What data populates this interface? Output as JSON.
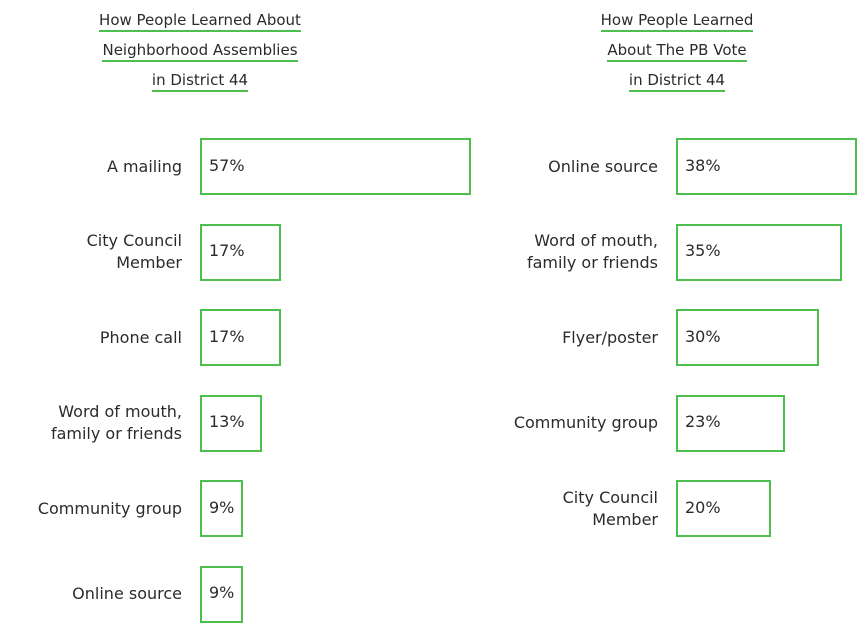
{
  "chart_data": [
    {
      "type": "bar",
      "title": [
        "How People Learned About",
        "Neighborhood Assemblies",
        "in District 44"
      ],
      "categories": [
        [
          "A mailing"
        ],
        [
          "City Council",
          "Member"
        ],
        [
          "Phone call"
        ],
        [
          "Word of mouth,",
          "family or friends"
        ],
        [
          "Community group"
        ],
        [
          "Online source"
        ]
      ],
      "values": [
        57,
        17,
        17,
        13,
        9,
        9
      ],
      "value_labels": [
        "57%",
        "17%",
        "17%",
        "13%",
        "9%",
        "9%"
      ],
      "color": "#4cbf4c"
    },
    {
      "type": "bar",
      "title": [
        "How People Learned",
        "About The PB Vote",
        "in District 44"
      ],
      "categories": [
        [
          "Online source"
        ],
        [
          "Word of mouth,",
          "family or friends"
        ],
        [
          "Flyer/poster"
        ],
        [
          "Community group"
        ],
        [
          "City Council",
          "Member"
        ]
      ],
      "values": [
        38,
        35,
        30,
        23,
        20
      ],
      "value_labels": [
        "38%",
        "35%",
        "30%",
        "23%",
        "20%"
      ],
      "color": "#4cbf4c"
    }
  ]
}
